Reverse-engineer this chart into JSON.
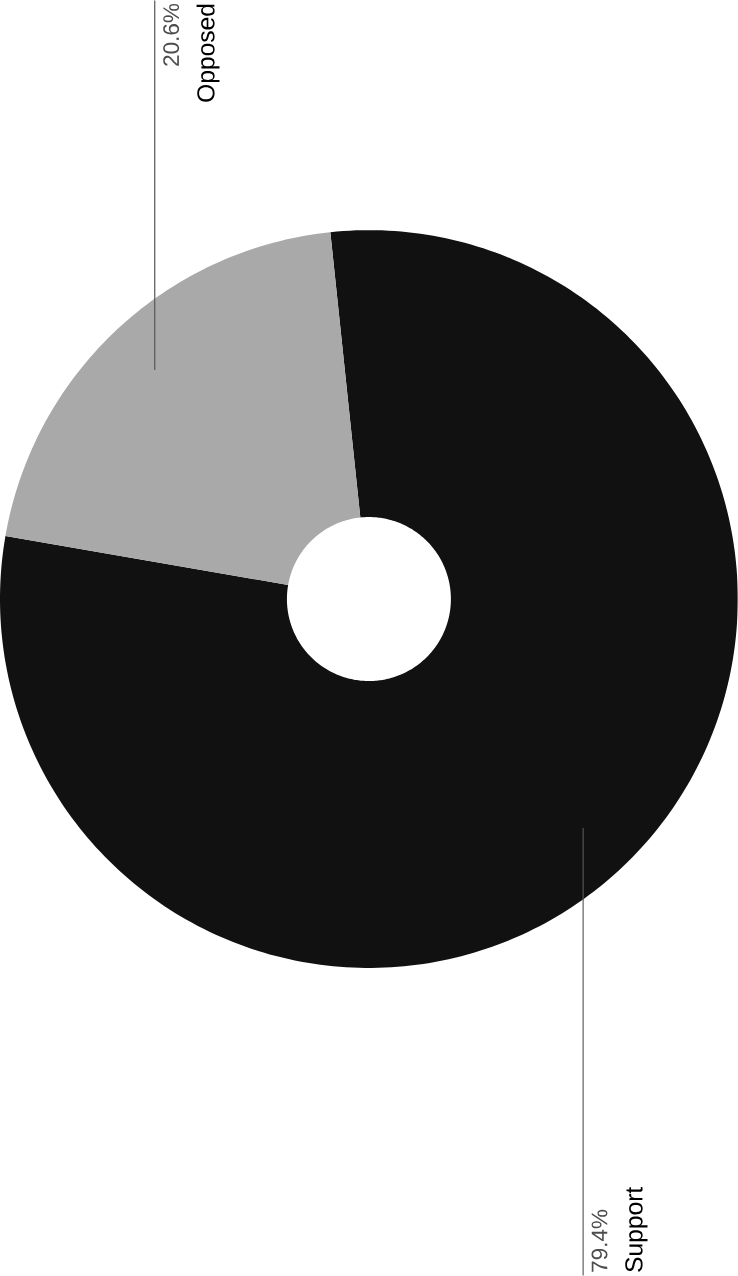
{
  "chart_data": {
    "type": "donut",
    "categories": [
      "Support",
      "Opposed"
    ],
    "values": [
      79.4,
      20.6
    ],
    "value_labels": [
      "79.4%",
      "20.6%"
    ],
    "colors": [
      "#111111",
      "#a9a9a9"
    ]
  }
}
